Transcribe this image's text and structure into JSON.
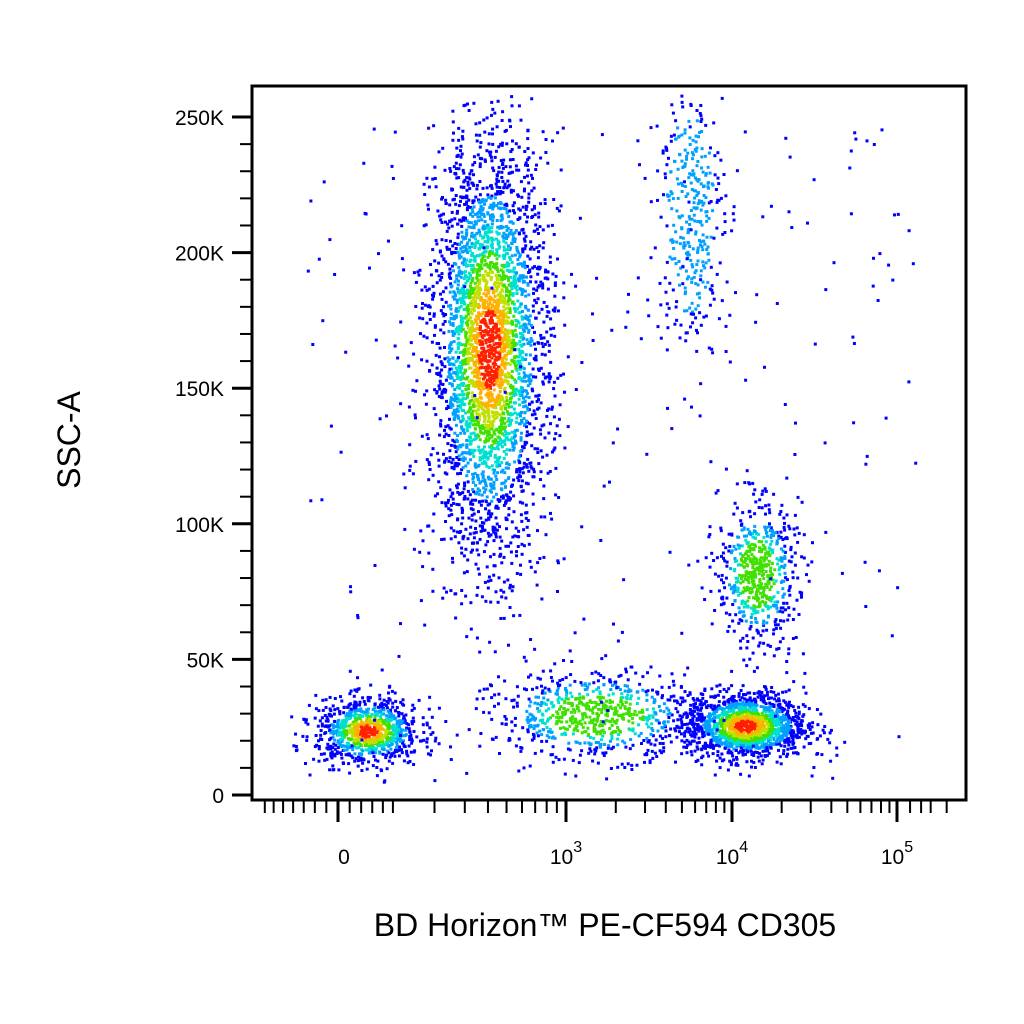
{
  "chart_data": {
    "type": "scatter",
    "subtype": "flow-cytometry pseudocolor density dot plot",
    "xlabel": "BD Horizon™ PE-CF594 CD305",
    "ylabel": "SSC-A",
    "x_scale": "biexponential (logicle)",
    "y_scale": "linear",
    "xlim": [
      -200,
      200000
    ],
    "ylim": [
      0,
      262144
    ],
    "x_ticks": [
      {
        "value": 0,
        "base": "0",
        "exp": ""
      },
      {
        "value": 1000,
        "base": "10",
        "exp": "3"
      },
      {
        "value": 10000,
        "base": "10",
        "exp": "4"
      },
      {
        "value": 100000,
        "base": "10",
        "exp": "5"
      }
    ],
    "y_ticks": [
      {
        "value": 0,
        "label": "0"
      },
      {
        "value": 50000,
        "label": "50K"
      },
      {
        "value": 100000,
        "label": "100K"
      },
      {
        "value": 150000,
        "label": "150K"
      },
      {
        "value": 200000,
        "label": "200K"
      },
      {
        "value": 250000,
        "label": "250K"
      }
    ],
    "grid": false,
    "legend": "none",
    "colormap": [
      "#0000ff",
      "#00a0ff",
      "#00e0d0",
      "#40e000",
      "#c0e000",
      "#ffb000",
      "#ff2000"
    ],
    "populations": [
      {
        "x_center": 400,
        "x_spread": 0.15,
        "y_center": 165000,
        "y_spread": 38000,
        "events": 3400
      },
      {
        "x_center": 5500,
        "x_spread": 0.1,
        "y_center": 215000,
        "y_spread": 25000,
        "events": 350
      },
      {
        "x_center": 14000,
        "x_spread": 0.12,
        "y_center": 82000,
        "y_spread": 13000,
        "events": 600
      },
      {
        "x_center": 12000,
        "x_spread": 0.18,
        "y_center": 26000,
        "y_spread": 6000,
        "events": 1500
      },
      {
        "x_center": 50,
        "x_spread": 0.3,
        "y_center": 24000,
        "y_spread": 6000,
        "events": 900
      },
      {
        "x_center": 1500,
        "x_spread": 0.3,
        "y_center": 30000,
        "y_spread": 8000,
        "events": 700
      }
    ]
  }
}
